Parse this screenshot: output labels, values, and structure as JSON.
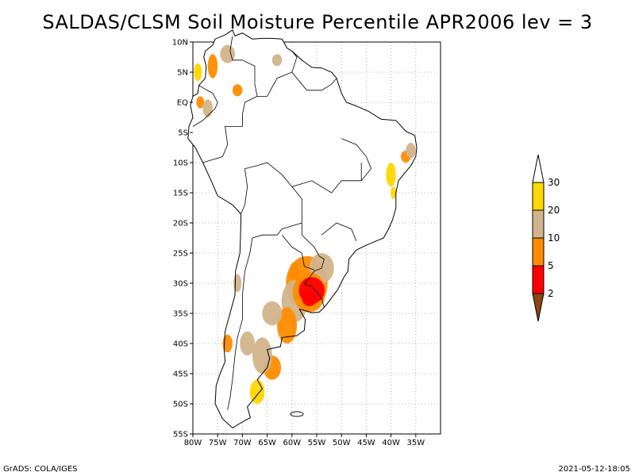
{
  "title": "SALDAS/CLSM Soil Moisture Percentile APR2006 lev = 3",
  "footer": {
    "left": "GrADS: COLA/IGES",
    "right": "2021-05-12-18:05"
  },
  "map": {
    "lon_range": [
      -80,
      -30
    ],
    "lat_range": [
      -55,
      10
    ],
    "lat_ticks": [
      {
        "value": 10,
        "label": "10N"
      },
      {
        "value": 5,
        "label": "5N"
      },
      {
        "value": 0,
        "label": "EQ"
      },
      {
        "value": -5,
        "label": "5S"
      },
      {
        "value": -10,
        "label": "10S"
      },
      {
        "value": -15,
        "label": "15S"
      },
      {
        "value": -20,
        "label": "20S"
      },
      {
        "value": -25,
        "label": "25S"
      },
      {
        "value": -30,
        "label": "30S"
      },
      {
        "value": -35,
        "label": "35S"
      },
      {
        "value": -40,
        "label": "40S"
      },
      {
        "value": -45,
        "label": "45S"
      },
      {
        "value": -50,
        "label": "50S"
      },
      {
        "value": -55,
        "label": "55S"
      }
    ],
    "lon_ticks": [
      {
        "value": -80,
        "label": "80W"
      },
      {
        "value": -75,
        "label": "75W"
      },
      {
        "value": -70,
        "label": "70W"
      },
      {
        "value": -65,
        "label": "65W"
      },
      {
        "value": -60,
        "label": "60W"
      },
      {
        "value": -55,
        "label": "55W"
      },
      {
        "value": -50,
        "label": "50W"
      },
      {
        "value": -45,
        "label": "45W"
      },
      {
        "value": -40,
        "label": "40W"
      },
      {
        "value": -35,
        "label": "35W"
      }
    ],
    "grid": true
  },
  "colorbar": {
    "levels": [
      "2",
      "5",
      "10",
      "20",
      "30"
    ],
    "colors": [
      "#8b4513",
      "#ff0000",
      "#ff8c00",
      "#d2b48c",
      "#ffd700",
      "#ffffff"
    ]
  }
}
